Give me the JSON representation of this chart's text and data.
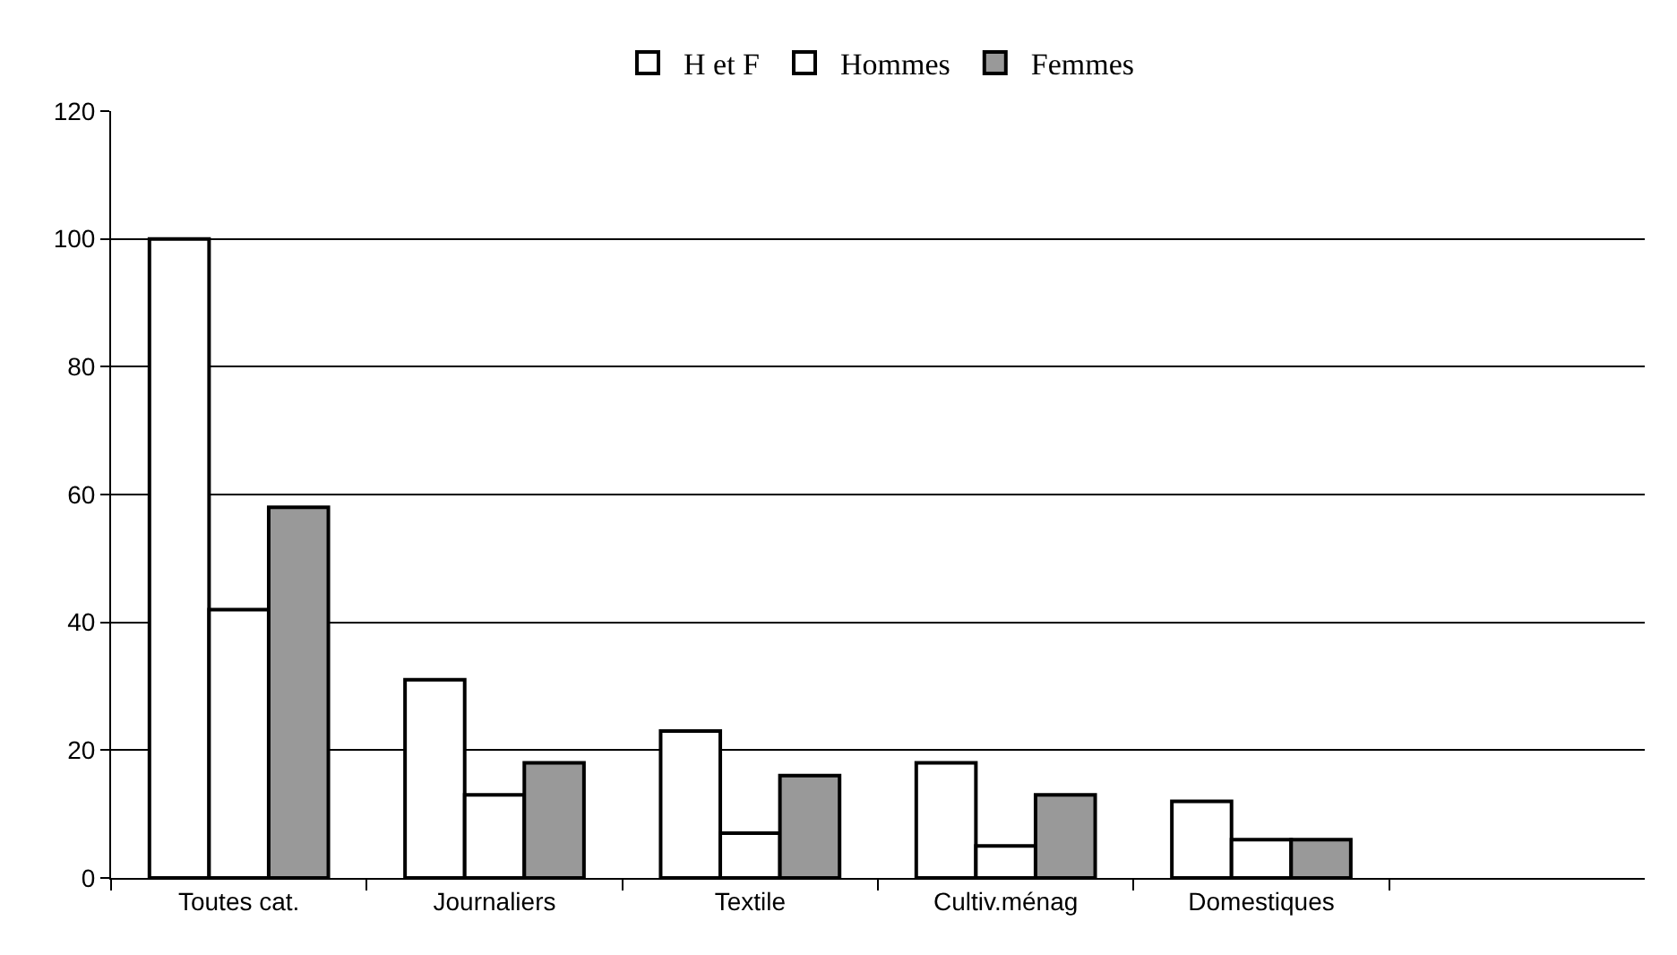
{
  "chart_data": {
    "type": "bar",
    "categories": [
      "Toutes cat.",
      "Journaliers",
      "Textile",
      "Cultiv.ménag",
      "Domestiques",
      null
    ],
    "series": [
      {
        "name": "H et F",
        "color": "#ffffff",
        "values": [
          100,
          31,
          23,
          18,
          12,
          null
        ]
      },
      {
        "name": "Hommes",
        "color": "#ffffff",
        "values": [
          42,
          13,
          7,
          5,
          6,
          null
        ]
      },
      {
        "name": "Femmes",
        "color": "#999999",
        "values": [
          58,
          18,
          16,
          13,
          6,
          null
        ]
      }
    ],
    "ylim": [
      0,
      120
    ],
    "yticks": [
      0,
      20,
      40,
      60,
      80,
      100,
      120
    ],
    "grid": "y",
    "legend": "top"
  }
}
